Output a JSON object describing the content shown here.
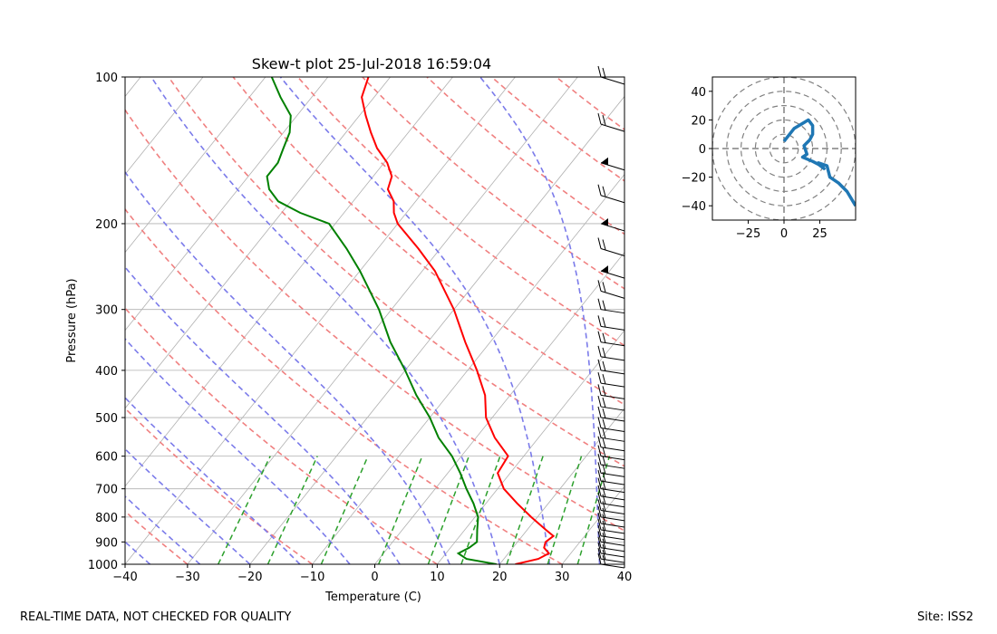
{
  "chart_data": [
    {
      "type": "line",
      "title": "Skew-t plot 25-Jul-2018 16:59:04",
      "xlabel": "Temperature (C)",
      "ylabel": "Pressure (hPa)",
      "xlim": [
        -40,
        40
      ],
      "ylim": [
        1000,
        100
      ],
      "x_ticks": [
        -40,
        -30,
        -20,
        -10,
        0,
        10,
        20,
        30,
        40
      ],
      "y_ticks": [
        1000,
        900,
        800,
        700,
        600,
        500,
        400,
        300,
        200,
        100
      ],
      "series": [
        {
          "name": "Temperature",
          "color": "#ff0000",
          "points": [
            [
              1000,
              22.5
            ],
            [
              975,
              25.5
            ],
            [
              950,
              26.5
            ],
            [
              925,
              25.0
            ],
            [
              900,
              24.5
            ],
            [
              875,
              25.0
            ],
            [
              850,
              23.0
            ],
            [
              800,
              19.0
            ],
            [
              750,
              15.0
            ],
            [
              700,
              11.0
            ],
            [
              650,
              8.0
            ],
            [
              600,
              7.5
            ],
            [
              550,
              3.0
            ],
            [
              500,
              -1.0
            ],
            [
              450,
              -4.0
            ],
            [
              400,
              -8.5
            ],
            [
              350,
              -14.0
            ],
            [
              300,
              -20.0
            ],
            [
              250,
              -28.0
            ],
            [
              225,
              -33.5
            ],
            [
              200,
              -40.0
            ],
            [
              190,
              -42.0
            ],
            [
              180,
              -43.5
            ],
            [
              170,
              -46.0
            ],
            [
              160,
              -47.0
            ],
            [
              150,
              -49.5
            ],
            [
              140,
              -53.0
            ],
            [
              130,
              -56.0
            ],
            [
              120,
              -59.0
            ],
            [
              110,
              -62.0
            ],
            [
              100,
              -63.5
            ]
          ]
        },
        {
          "name": "Dewpoint",
          "color": "#008000",
          "points": [
            [
              1000,
              19.5
            ],
            [
              975,
              14.0
            ],
            [
              950,
              12.0
            ],
            [
              925,
              13.0
            ],
            [
              900,
              13.5
            ],
            [
              850,
              12.0
            ],
            [
              800,
              10.5
            ],
            [
              750,
              8.0
            ],
            [
              700,
              5.0
            ],
            [
              650,
              2.0
            ],
            [
              600,
              -1.5
            ],
            [
              550,
              -6.0
            ],
            [
              500,
              -10.0
            ],
            [
              450,
              -15.0
            ],
            [
              400,
              -20.0
            ],
            [
              350,
              -26.0
            ],
            [
              300,
              -32.0
            ],
            [
              250,
              -40.0
            ],
            [
              225,
              -45.0
            ],
            [
              200,
              -51.0
            ],
            [
              190,
              -57.0
            ],
            [
              180,
              -62.0
            ],
            [
              170,
              -65.0
            ],
            [
              160,
              -67.0
            ],
            [
              150,
              -67.0
            ],
            [
              140,
              -68.0
            ],
            [
              130,
              -69.0
            ],
            [
              120,
              -71.0
            ],
            [
              110,
              -75.0
            ],
            [
              100,
              -79.0
            ]
          ]
        }
      ],
      "reference_lines": {
        "isotherms_color": "#aaaaaa",
        "dry_adiabats_color": "#f08080",
        "moist_adiabats_color": "#7b7bea",
        "mixing_ratio_color": "#2ca02c"
      },
      "wind_barbs": "right margin, 100-1000 hPa"
    },
    {
      "type": "line",
      "title": "",
      "xlim": [
        -50,
        50
      ],
      "ylim": [
        -50,
        50
      ],
      "x_ticks": [
        -25,
        0,
        25
      ],
      "y_ticks": [
        40,
        20,
        0,
        -20,
        -40
      ],
      "range_rings": [
        10,
        20,
        30,
        40,
        50
      ],
      "series": [
        {
          "name": "Hodograph",
          "color": "#1f77b4",
          "points": [
            [
              0,
              5
            ],
            [
              7,
              14
            ],
            [
              17,
              20
            ],
            [
              20,
              16
            ],
            [
              20,
              10
            ],
            [
              18,
              6
            ],
            [
              14,
              2
            ],
            [
              16,
              -4
            ],
            [
              13,
              -6
            ],
            [
              20,
              -9
            ],
            [
              24,
              -11
            ],
            [
              28,
              -14
            ],
            [
              24,
              -10
            ],
            [
              30,
              -12
            ],
            [
              32,
              -20
            ],
            [
              38,
              -24
            ],
            [
              44,
              -30
            ],
            [
              50,
              -40
            ]
          ]
        }
      ]
    }
  ],
  "footer": {
    "left_text": "REAL-TIME DATA, NOT CHECKED FOR QUALITY",
    "right_text": "Site: ISS2"
  }
}
